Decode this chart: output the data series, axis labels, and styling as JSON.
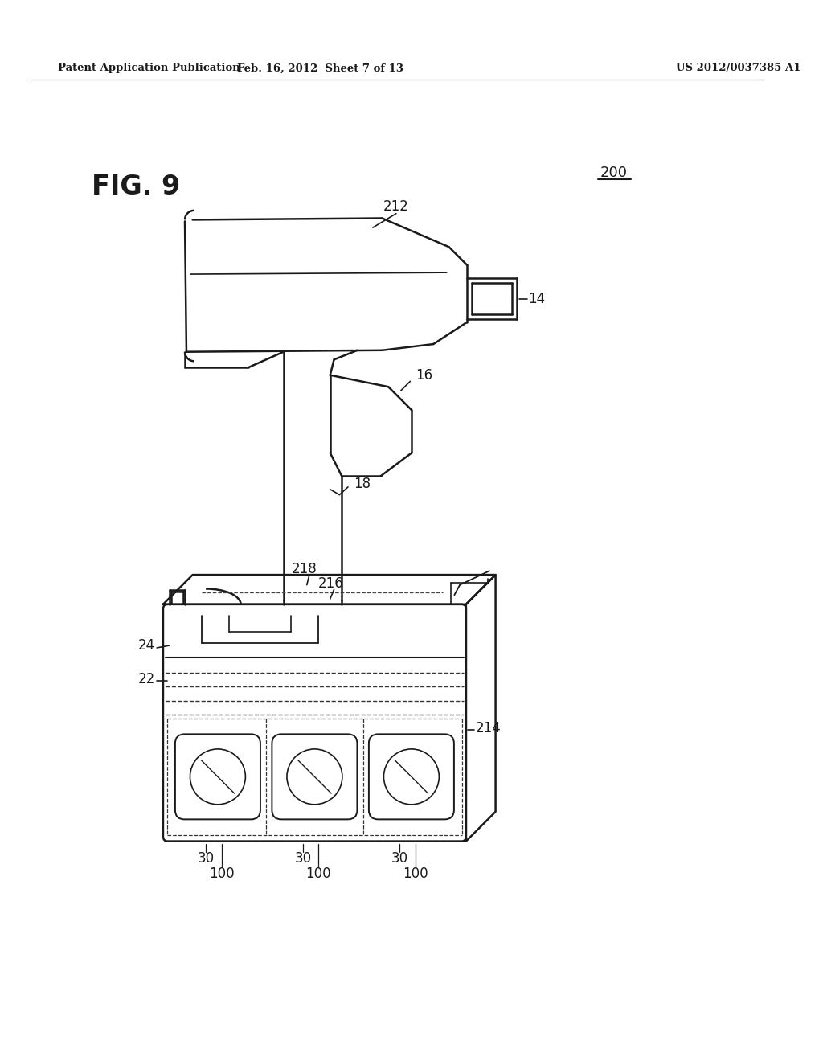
{
  "bg_color": "#ffffff",
  "line_color": "#1a1a1a",
  "header_left": "Patent Application Publication",
  "header_mid": "Feb. 16, 2012  Sheet 7 of 13",
  "header_right": "US 2012/0037385 A1",
  "fig_label": "FIG. 9",
  "ref_200": "200",
  "ref_212": "212",
  "ref_14": "14",
  "ref_16": "16",
  "ref_18": "18",
  "ref_218": "218",
  "ref_216": "216",
  "ref_24": "24",
  "ref_22": "22",
  "ref_214": "214",
  "ref_30_list": [
    "30",
    "30",
    "30"
  ],
  "ref_100_list": [
    "100",
    "100",
    "100"
  ]
}
